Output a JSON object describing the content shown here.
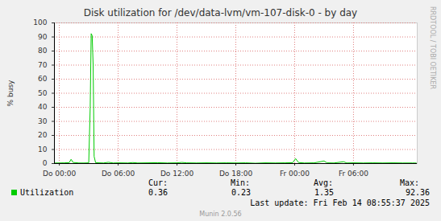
{
  "chart_data": {
    "type": "line",
    "title": "Disk utilization for /dev/data-lvm/vm-107-disk-0 - by day",
    "y_label": "% busy",
    "x": [
      -0.5,
      0,
      0.5,
      1.0,
      1.2,
      1.4,
      2.0,
      2.5,
      3.0,
      3.15,
      3.25,
      3.35,
      3.45,
      3.55,
      3.7,
      4.5,
      5.0,
      5.5,
      6,
      7,
      7.5,
      8,
      9,
      10,
      11,
      12,
      12.5,
      13,
      14,
      15,
      16,
      17,
      18,
      19,
      20,
      21,
      22,
      23,
      23.8,
      24.1,
      24.4,
      25,
      26,
      27,
      27.3,
      28,
      29,
      29.3,
      30,
      31,
      32,
      33,
      34,
      35,
      36,
      36.4
    ],
    "series": [
      {
        "name": "Utilization",
        "color": "#00cc00",
        "values": [
          0.4,
          0.4,
          0.5,
          0.6,
          3.0,
          0.8,
          0.4,
          0.4,
          0.5,
          40,
          92.36,
          91,
          70,
          5,
          0.6,
          0.4,
          0.9,
          0.4,
          0.5,
          0.4,
          0.7,
          0.4,
          0.5,
          0.6,
          0.4,
          0.5,
          0.8,
          0.5,
          0.4,
          0.5,
          0.4,
          0.5,
          0.4,
          0.5,
          0.23,
          0.5,
          0.4,
          0.5,
          0.6,
          3.5,
          0.7,
          0.4,
          0.5,
          1.8,
          0.5,
          0.4,
          1.3,
          0.4,
          0.5,
          0.4,
          0.5,
          0.4,
          0.5,
          0.4,
          0.4,
          0.36
        ]
      }
    ],
    "xlim": [
      -0.5,
      36.5
    ],
    "xticks": [
      {
        "value": 0,
        "label": "Do 00:00"
      },
      {
        "value": 6,
        "label": "Do 06:00"
      },
      {
        "value": 12,
        "label": "Do 12:00"
      },
      {
        "value": 18,
        "label": "Do 18:00"
      },
      {
        "value": 24,
        "label": "Fr 00:00"
      },
      {
        "value": 30,
        "label": "Fr 06:00"
      }
    ],
    "ylim": [
      0,
      100
    ],
    "yticks": [
      0,
      10,
      20,
      30,
      40,
      50,
      60,
      70,
      80,
      90,
      100
    ],
    "grid": true,
    "summary": {
      "labels": [
        "Cur:",
        "Min:",
        "Avg:",
        "Max:"
      ],
      "values": [
        0.36,
        0.23,
        1.35,
        92.36
      ]
    },
    "last_update": "Last update: Fri Feb 14 08:55:37 2025",
    "watermark": "RRDTOOL / TOBI OETIKER",
    "generator": "Munin 2.0.56"
  }
}
